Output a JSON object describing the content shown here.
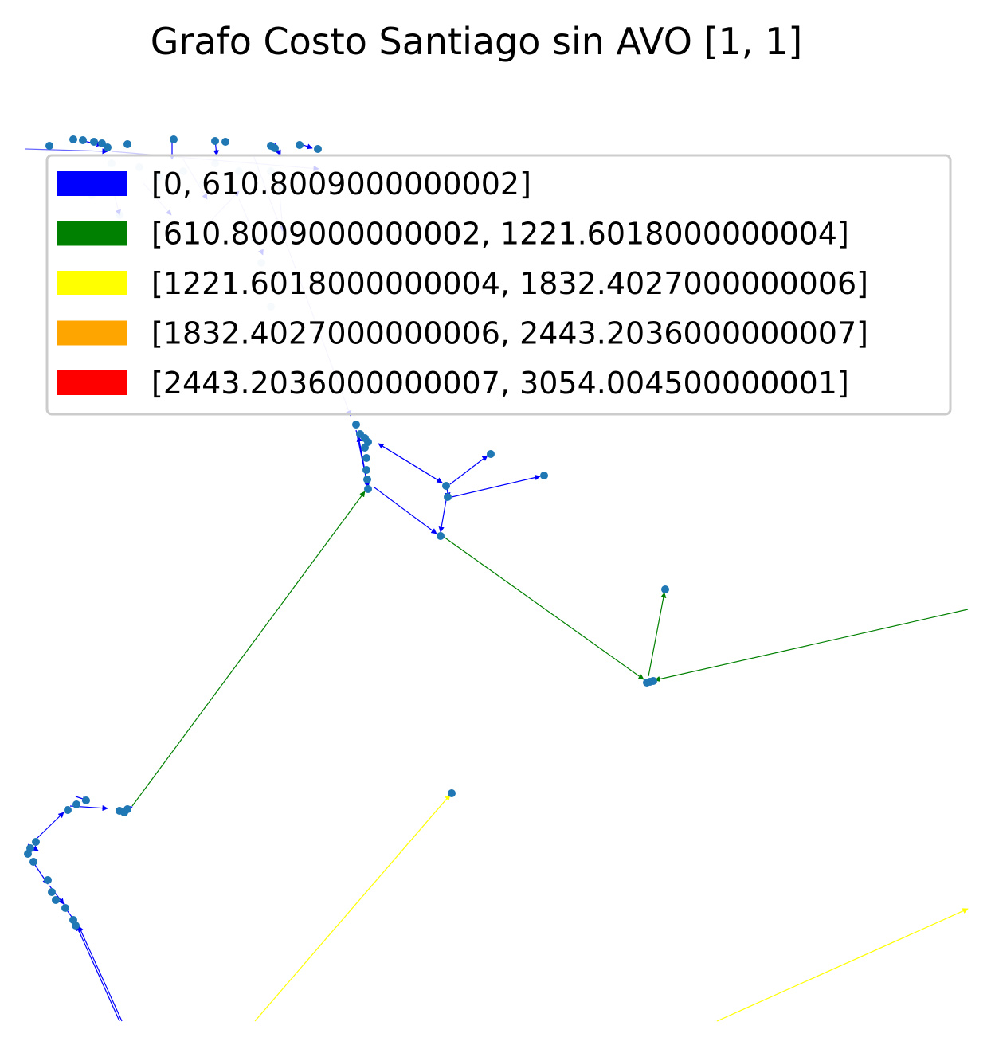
{
  "title": "Grafo Costo Santiago sin AVO [1, 1]",
  "node_color": "#1f77b4",
  "legend": {
    "items": [
      {
        "label": "[0, 610.8009000000002]",
        "color": "#0000ff"
      },
      {
        "label": "[610.8009000000002, 1221.6018000000004]",
        "color": "#008000"
      },
      {
        "label": "[1221.6018000000004, 1832.4027000000006]",
        "color": "#ffff00"
      },
      {
        "label": "[1832.4027000000006, 2443.2036000000007]",
        "color": "#ffa500"
      },
      {
        "label": "[2443.2036000000007, 3054.004500000001]",
        "color": "#ff0000"
      }
    ]
  }
}
